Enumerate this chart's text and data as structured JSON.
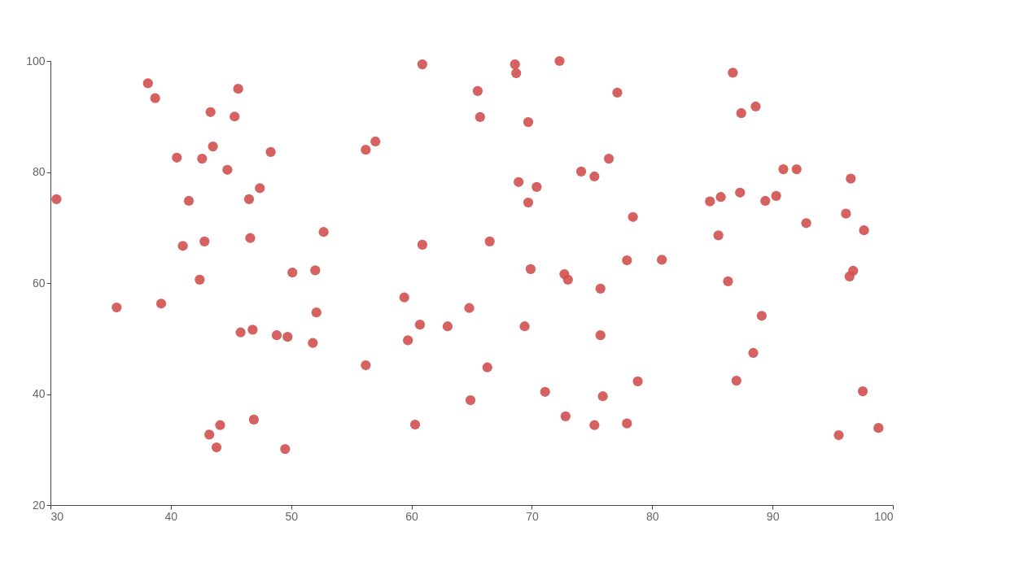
{
  "chart_data": {
    "type": "scatter",
    "x": [
      30.5,
      35.5,
      38.1,
      38.7,
      39.2,
      40.5,
      41.0,
      41.5,
      42.4,
      42.6,
      42.8,
      43.3,
      43.5,
      43.2,
      43.8,
      44.1,
      44.7,
      45.3,
      45.6,
      45.8,
      46.5,
      46.6,
      46.8,
      46.9,
      47.4,
      48.3,
      48.8,
      49.5,
      49.7,
      50.1,
      51.8,
      52.0,
      52.1,
      52.7,
      56.2,
      56.2,
      57.0,
      59.4,
      59.7,
      60.3,
      60.7,
      60.9,
      60.9,
      63.0,
      64.8,
      64.9,
      65.5,
      65.7,
      66.3,
      66.5,
      68.6,
      68.7,
      68.9,
      69.4,
      69.7,
      69.7,
      69.9,
      70.4,
      71.1,
      72.3,
      72.7,
      73.0,
      72.8,
      74.1,
      75.2,
      75.2,
      75.7,
      75.7,
      75.9,
      76.4,
      77.1,
      77.9,
      77.9,
      78.4,
      78.8,
      80.8,
      84.8,
      85.7,
      85.5,
      86.3,
      86.7,
      87.0,
      87.3,
      87.4,
      88.4,
      88.6,
      89.1,
      89.4,
      90.3,
      90.9,
      92.0,
      92.8,
      95.5,
      96.1,
      96.4,
      96.7,
      96.5,
      97.5,
      97.6,
      98.8
    ],
    "values": [
      75.1,
      55.6,
      96.0,
      93.3,
      56.3,
      82.6,
      66.7,
      74.8,
      60.6,
      82.4,
      67.5,
      90.8,
      84.6,
      32.7,
      30.4,
      34.4,
      80.4,
      90.0,
      95.0,
      51.1,
      75.1,
      68.1,
      51.6,
      35.4,
      77.1,
      83.6,
      50.6,
      30.1,
      50.3,
      61.9,
      49.2,
      62.3,
      54.7,
      69.2,
      84.0,
      45.2,
      85.5,
      57.4,
      49.7,
      34.5,
      52.5,
      66.9,
      99.4,
      52.2,
      55.5,
      38.9,
      94.6,
      89.9,
      44.8,
      67.5,
      99.4,
      97.8,
      78.2,
      52.2,
      89.0,
      74.5,
      62.5,
      77.3,
      40.4,
      100,
      61.6,
      60.6,
      36.0,
      80.1,
      79.2,
      34.4,
      59.0,
      50.6,
      39.6,
      82.4,
      94.3,
      64.1,
      34.7,
      71.9,
      42.3,
      64.2,
      74.7,
      75.5,
      68.6,
      60.3,
      97.9,
      42.4,
      76.3,
      90.6,
      47.4,
      91.8,
      54.1,
      74.8,
      75.7,
      80.5,
      80.5,
      70.8,
      32.6,
      72.5,
      61.2,
      62.2,
      78.8,
      40.5,
      69.5,
      33.9
    ],
    "color": "#d05050",
    "marker": "circle",
    "xlim": [
      30,
      100
    ],
    "xticks": [
      30,
      40,
      50,
      60,
      70,
      80,
      90,
      100
    ],
    "ylim": [
      20,
      100
    ],
    "yticks": [
      20,
      40,
      60,
      80,
      100
    ]
  }
}
